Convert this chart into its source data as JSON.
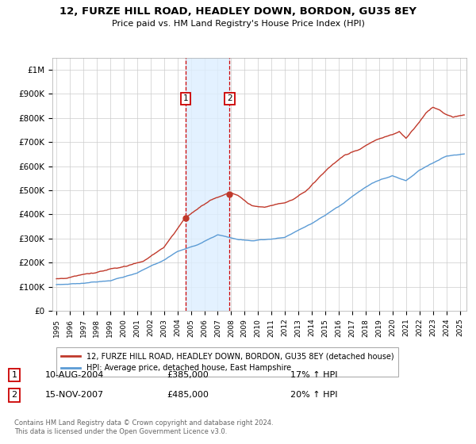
{
  "title": "12, FURZE HILL ROAD, HEADLEY DOWN, BORDON, GU35 8EY",
  "subtitle": "Price paid vs. HM Land Registry's House Price Index (HPI)",
  "ylabel_ticks": [
    "£0",
    "£100K",
    "£200K",
    "£300K",
    "£400K",
    "£500K",
    "£600K",
    "£700K",
    "£800K",
    "£900K",
    "£1M"
  ],
  "ytick_vals": [
    0,
    100000,
    200000,
    300000,
    400000,
    500000,
    600000,
    700000,
    800000,
    900000,
    1000000
  ],
  "ylim": [
    0,
    1050000
  ],
  "xlim_start": 1994.7,
  "xlim_end": 2025.5,
  "hpi_color": "#5b9bd5",
  "house_color": "#c0392b",
  "marker1_x": 2004.61,
  "marker1_y": 385000,
  "marker2_x": 2007.88,
  "marker2_y": 485000,
  "legend_house": "12, FURZE HILL ROAD, HEADLEY DOWN, BORDON, GU35 8EY (detached house)",
  "legend_hpi": "HPI: Average price, detached house, East Hampshire",
  "note1_label": "1",
  "note1_date": "10-AUG-2004",
  "note1_price": "£385,000",
  "note1_hpi": "17% ↑ HPI",
  "note2_label": "2",
  "note2_date": "15-NOV-2007",
  "note2_price": "£485,000",
  "note2_hpi": "20% ↑ HPI",
  "footer": "Contains HM Land Registry data © Crown copyright and database right 2024.\nThis data is licensed under the Open Government Licence v3.0.",
  "background_color": "#ffffff",
  "grid_color": "#cccccc",
  "span_color": "#ddeeff",
  "hpi_x": [
    1995.0,
    1995.083,
    1995.167,
    1995.25,
    1995.333,
    1995.417,
    1995.5,
    1995.583,
    1995.667,
    1995.75,
    1995.833,
    1995.917,
    1996.0,
    1996.083,
    1996.167,
    1996.25,
    1996.333,
    1996.417,
    1996.5,
    1996.583,
    1996.667,
    1996.75,
    1996.833,
    1996.917,
    1997.0,
    1997.083,
    1997.167,
    1997.25,
    1997.333,
    1997.417,
    1997.5,
    1997.583,
    1997.667,
    1997.75,
    1997.833,
    1997.917,
    1998.0,
    1998.083,
    1998.167,
    1998.25,
    1998.333,
    1998.417,
    1998.5,
    1998.583,
    1998.667,
    1998.75,
    1998.833,
    1998.917,
    1999.0,
    1999.083,
    1999.167,
    1999.25,
    1999.333,
    1999.417,
    1999.5,
    1999.583,
    1999.667,
    1999.75,
    1999.833,
    1999.917,
    2000.0,
    2000.083,
    2000.167,
    2000.25,
    2000.333,
    2000.417,
    2000.5,
    2000.583,
    2000.667,
    2000.75,
    2000.833,
    2000.917,
    2001.0,
    2001.083,
    2001.167,
    2001.25,
    2001.333,
    2001.417,
    2001.5,
    2001.583,
    2001.667,
    2001.75,
    2001.833,
    2001.917,
    2002.0,
    2002.083,
    2002.167,
    2002.25,
    2002.333,
    2002.417,
    2002.5,
    2002.583,
    2002.667,
    2002.75,
    2002.833,
    2002.917,
    2003.0,
    2003.083,
    2003.167,
    2003.25,
    2003.333,
    2003.417,
    2003.5,
    2003.583,
    2003.667,
    2003.75,
    2003.833,
    2003.917,
    2004.0,
    2004.083,
    2004.167,
    2004.25,
    2004.333,
    2004.417,
    2004.5,
    2004.583,
    2004.667,
    2004.75,
    2004.833,
    2004.917,
    2005.0,
    2005.083,
    2005.167,
    2005.25,
    2005.333,
    2005.417,
    2005.5,
    2005.583,
    2005.667,
    2005.75,
    2005.833,
    2005.917,
    2006.0,
    2006.083,
    2006.167,
    2006.25,
    2006.333,
    2006.417,
    2006.5,
    2006.583,
    2006.667,
    2006.75,
    2006.833,
    2006.917,
    2007.0,
    2007.083,
    2007.167,
    2007.25,
    2007.333,
    2007.417,
    2007.5,
    2007.583,
    2007.667,
    2007.75,
    2007.833,
    2007.917,
    2008.0,
    2008.083,
    2008.167,
    2008.25,
    2008.333,
    2008.417,
    2008.5,
    2008.583,
    2008.667,
    2008.75,
    2008.833,
    2008.917,
    2009.0,
    2009.083,
    2009.167,
    2009.25,
    2009.333,
    2009.417,
    2009.5,
    2009.583,
    2009.667,
    2009.75,
    2009.833,
    2009.917,
    2010.0,
    2010.083,
    2010.167,
    2010.25,
    2010.333,
    2010.417,
    2010.5,
    2010.583,
    2010.667,
    2010.75,
    2010.833,
    2010.917,
    2011.0,
    2011.083,
    2011.167,
    2011.25,
    2011.333,
    2011.417,
    2011.5,
    2011.583,
    2011.667,
    2011.75,
    2011.833,
    2011.917,
    2012.0,
    2012.083,
    2012.167,
    2012.25,
    2012.333,
    2012.417,
    2012.5,
    2012.583,
    2012.667,
    2012.75,
    2012.833,
    2012.917,
    2013.0,
    2013.083,
    2013.167,
    2013.25,
    2013.333,
    2013.417,
    2013.5,
    2013.583,
    2013.667,
    2013.75,
    2013.833,
    2013.917,
    2014.0,
    2014.083,
    2014.167,
    2014.25,
    2014.333,
    2014.417,
    2014.5,
    2014.583,
    2014.667,
    2014.75,
    2014.833,
    2014.917,
    2015.0,
    2015.083,
    2015.167,
    2015.25,
    2015.333,
    2015.417,
    2015.5,
    2015.583,
    2015.667,
    2015.75,
    2015.833,
    2015.917,
    2016.0,
    2016.083,
    2016.167,
    2016.25,
    2016.333,
    2016.417,
    2016.5,
    2016.583,
    2016.667,
    2016.75,
    2016.833,
    2016.917,
    2017.0,
    2017.083,
    2017.167,
    2017.25,
    2017.333,
    2017.417,
    2017.5,
    2017.583,
    2017.667,
    2017.75,
    2017.833,
    2017.917,
    2018.0,
    2018.083,
    2018.167,
    2018.25,
    2018.333,
    2018.417,
    2018.5,
    2018.583,
    2018.667,
    2018.75,
    2018.833,
    2018.917,
    2019.0,
    2019.083,
    2019.167,
    2019.25,
    2019.333,
    2019.417,
    2019.5,
    2019.583,
    2019.667,
    2019.75,
    2019.833,
    2019.917,
    2020.0,
    2020.083,
    2020.167,
    2020.25,
    2020.333,
    2020.417,
    2020.5,
    2020.583,
    2020.667,
    2020.75,
    2020.833,
    2020.917,
    2021.0,
    2021.083,
    2021.167,
    2021.25,
    2021.333,
    2021.417,
    2021.5,
    2021.583,
    2021.667,
    2021.75,
    2021.833,
    2021.917,
    2022.0,
    2022.083,
    2022.167,
    2022.25,
    2022.333,
    2022.417,
    2022.5,
    2022.583,
    2022.667,
    2022.75,
    2022.833,
    2022.917,
    2023.0,
    2023.083,
    2023.167,
    2023.25,
    2023.333,
    2023.417,
    2023.5,
    2023.583,
    2023.667,
    2023.75,
    2023.833,
    2023.917,
    2024.0,
    2024.083,
    2024.167,
    2024.25,
    2024.333,
    2024.417,
    2024.5,
    2024.583,
    2024.667,
    2024.75,
    2024.833,
    2024.917,
    2025.0,
    2025.083,
    2025.167,
    2025.25,
    2025.333
  ],
  "hpi_y_knots": [
    1995.0,
    1997.0,
    1999.0,
    2001.0,
    2003.0,
    2004.0,
    2005.5,
    2007.0,
    2008.5,
    2009.5,
    2012.0,
    2014.0,
    2016.0,
    2017.5,
    2018.5,
    2020.0,
    2021.0,
    2022.0,
    2023.0,
    2024.0,
    2025.333
  ],
  "hpi_y_vals": [
    108000,
    115000,
    130000,
    160000,
    215000,
    250000,
    278000,
    320000,
    300000,
    295000,
    310000,
    365000,
    430000,
    490000,
    525000,
    555000,
    535000,
    580000,
    610000,
    640000,
    650000
  ],
  "house_y_knots": [
    1995.0,
    1996.0,
    1997.0,
    1998.5,
    2000.0,
    2001.5,
    2003.0,
    2004.0,
    2004.61,
    2005.5,
    2006.5,
    2007.0,
    2007.88,
    2008.5,
    2009.5,
    2010.5,
    2011.5,
    2012.5,
    2013.5,
    2014.5,
    2015.5,
    2016.5,
    2017.5,
    2018.5,
    2019.5,
    2020.5,
    2021.0,
    2022.0,
    2022.5,
    2023.0,
    2023.5,
    2024.0,
    2024.5,
    2025.333
  ],
  "house_y_vals": [
    133000,
    140000,
    148000,
    162000,
    185000,
    210000,
    265000,
    340000,
    385000,
    420000,
    455000,
    465000,
    485000,
    470000,
    430000,
    425000,
    440000,
    455000,
    490000,
    545000,
    600000,
    640000,
    660000,
    690000,
    710000,
    730000,
    700000,
    770000,
    810000,
    830000,
    820000,
    800000,
    790000,
    800000
  ]
}
